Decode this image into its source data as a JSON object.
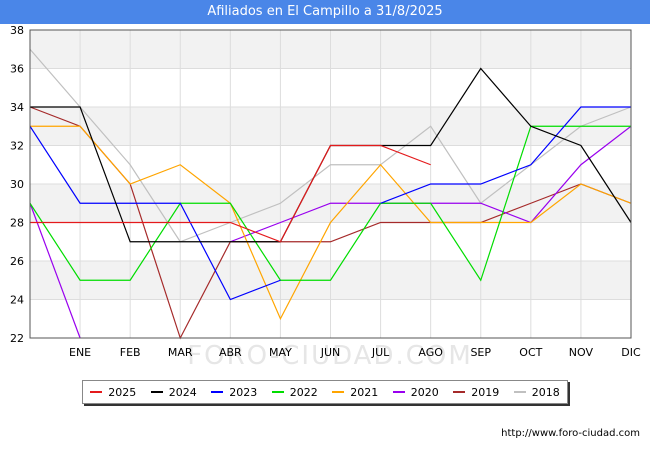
{
  "title": "Afiliados en El Campillo a 31/8/2025",
  "source": "http://www.foro-ciudad.com",
  "watermark": "FORO-CIUDAD.COM",
  "chart_data": {
    "type": "line",
    "title": "Afiliados en El Campillo a 31/8/2025",
    "categories": [
      "",
      "ENE",
      "FEB",
      "MAR",
      "ABR",
      "MAY",
      "JUN",
      "JUL",
      "AGO",
      "SEP",
      "OCT",
      "NOV",
      "DIC"
    ],
    "ylim": [
      22,
      38
    ],
    "yticks": [
      22,
      24,
      26,
      28,
      30,
      32,
      34,
      36,
      38
    ],
    "grid": true,
    "legend_position": "bottom",
    "series": [
      {
        "name": "2025",
        "color": "#e41a1c",
        "values": [
          28,
          28,
          28,
          28,
          28,
          27,
          32,
          32,
          31,
          null,
          null,
          null,
          null
        ]
      },
      {
        "name": "2024",
        "color": "#000000",
        "values": [
          34,
          34,
          27,
          27,
          27,
          27,
          32,
          32,
          32,
          36,
          33,
          32,
          28
        ]
      },
      {
        "name": "2023",
        "color": "#0000ff",
        "values": [
          33,
          29,
          29,
          29,
          24,
          25,
          null,
          29,
          30,
          30,
          31,
          34,
          34
        ]
      },
      {
        "name": "2022",
        "color": "#00dd00",
        "values": [
          29,
          25,
          25,
          29,
          29,
          25,
          25,
          29,
          29,
          25,
          33,
          33,
          33
        ]
      },
      {
        "name": "2021",
        "color": "#ffa500",
        "values": [
          33,
          33,
          30,
          31,
          29,
          23,
          28,
          31,
          28,
          28,
          28,
          30,
          29
        ]
      },
      {
        "name": "2020",
        "color": "#9900ee",
        "values": [
          29,
          22,
          null,
          null,
          27,
          28,
          29,
          29,
          29,
          29,
          28,
          31,
          33
        ]
      },
      {
        "name": "2019",
        "color": "#a52a2a",
        "values": [
          34,
          33,
          30,
          22,
          27,
          27,
          27,
          28,
          28,
          28,
          29,
          30,
          29
        ]
      },
      {
        "name": "2018",
        "color": "#c0c0c0",
        "values": [
          37,
          34,
          31,
          27,
          28,
          29,
          31,
          31,
          33,
          29,
          31,
          33,
          34
        ]
      }
    ]
  }
}
